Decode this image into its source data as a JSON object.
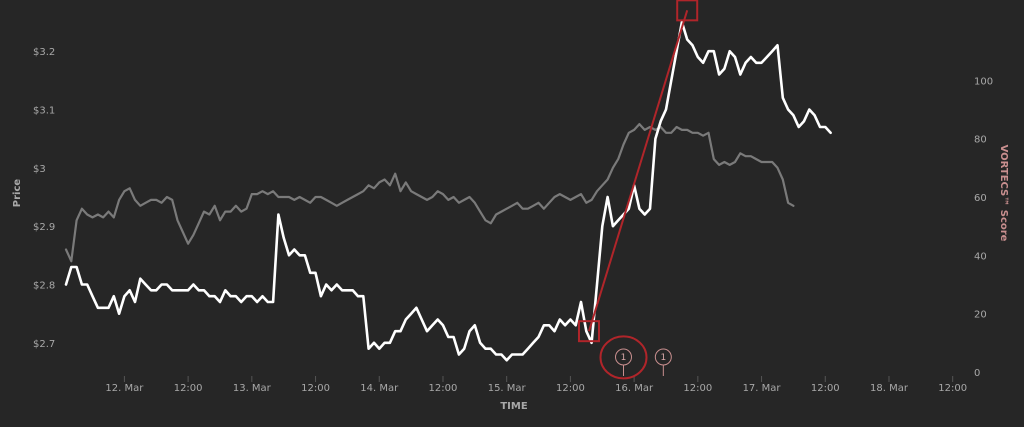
{
  "chart_data": {
    "type": "line",
    "xlabel": "TIME",
    "ylabel_left": "Price",
    "ylabel_right": "VORTECS™ Score",
    "x_ticks": [
      "12. Mar",
      "12:00",
      "13. Mar",
      "12:00",
      "14. Mar",
      "12:00",
      "15. Mar",
      "12:00",
      "16. Mar",
      "12:00",
      "17. Mar",
      "12:00",
      "18. Mar",
      "12:00"
    ],
    "x_tick_hours": [
      24,
      36,
      48,
      60,
      72,
      84,
      96,
      108,
      120,
      132,
      144,
      156,
      168,
      180
    ],
    "x_range_hours": [
      13,
      181
    ],
    "y_left": {
      "ticks": [
        "$2.7",
        "$2.8",
        "$2.9",
        "$3",
        "$3.1",
        "$3.2"
      ],
      "values": [
        2.7,
        2.8,
        2.9,
        3.0,
        3.1,
        3.2
      ],
      "range": [
        2.65,
        3.25
      ]
    },
    "y_right": {
      "ticks": [
        "0",
        "20",
        "40",
        "60",
        "80",
        "100"
      ],
      "values": [
        0,
        20,
        40,
        60,
        80,
        100
      ],
      "range": [
        0,
        120
      ]
    },
    "series": [
      {
        "axis": "left",
        "color": "#ffffff",
        "points": [
          [
            13,
            2.8
          ],
          [
            14,
            2.83
          ],
          [
            15,
            2.83
          ],
          [
            16,
            2.8
          ],
          [
            17,
            2.8
          ],
          [
            18,
            2.78
          ],
          [
            19,
            2.76
          ],
          [
            20,
            2.76
          ],
          [
            21,
            2.76
          ],
          [
            22,
            2.78
          ],
          [
            23,
            2.75
          ],
          [
            24,
            2.78
          ],
          [
            25,
            2.79
          ],
          [
            26,
            2.77
          ],
          [
            27,
            2.81
          ],
          [
            28,
            2.8
          ],
          [
            29,
            2.79
          ],
          [
            30,
            2.79
          ],
          [
            31,
            2.8
          ],
          [
            32,
            2.8
          ],
          [
            33,
            2.79
          ],
          [
            34,
            2.79
          ],
          [
            35,
            2.79
          ],
          [
            36,
            2.79
          ],
          [
            37,
            2.8
          ],
          [
            38,
            2.79
          ],
          [
            39,
            2.79
          ],
          [
            40,
            2.78
          ],
          [
            41,
            2.78
          ],
          [
            42,
            2.77
          ],
          [
            43,
            2.79
          ],
          [
            44,
            2.78
          ],
          [
            45,
            2.78
          ],
          [
            46,
            2.77
          ],
          [
            47,
            2.78
          ],
          [
            48,
            2.78
          ],
          [
            49,
            2.77
          ],
          [
            50,
            2.78
          ],
          [
            51,
            2.77
          ],
          [
            52,
            2.77
          ],
          [
            53,
            2.92
          ],
          [
            54,
            2.88
          ],
          [
            55,
            2.85
          ],
          [
            56,
            2.86
          ],
          [
            57,
            2.85
          ],
          [
            58,
            2.85
          ],
          [
            59,
            2.82
          ],
          [
            60,
            2.82
          ],
          [
            61,
            2.78
          ],
          [
            62,
            2.8
          ],
          [
            63,
            2.79
          ],
          [
            64,
            2.8
          ],
          [
            65,
            2.79
          ],
          [
            66,
            2.79
          ],
          [
            67,
            2.79
          ],
          [
            68,
            2.78
          ],
          [
            69,
            2.78
          ],
          [
            70,
            2.69
          ],
          [
            71,
            2.7
          ],
          [
            72,
            2.69
          ],
          [
            73,
            2.7
          ],
          [
            74,
            2.7
          ],
          [
            75,
            2.72
          ],
          [
            76,
            2.72
          ],
          [
            77,
            2.74
          ],
          [
            78,
            2.75
          ],
          [
            79,
            2.76
          ],
          [
            80,
            2.74
          ],
          [
            81,
            2.72
          ],
          [
            82,
            2.73
          ],
          [
            83,
            2.74
          ],
          [
            84,
            2.73
          ],
          [
            85,
            2.71
          ],
          [
            86,
            2.71
          ],
          [
            87,
            2.68
          ],
          [
            88,
            2.69
          ],
          [
            89,
            2.72
          ],
          [
            90,
            2.73
          ],
          [
            91,
            2.7
          ],
          [
            92,
            2.69
          ],
          [
            93,
            2.69
          ],
          [
            94,
            2.68
          ],
          [
            95,
            2.68
          ],
          [
            96,
            2.67
          ],
          [
            97,
            2.68
          ],
          [
            98,
            2.68
          ],
          [
            99,
            2.68
          ],
          [
            100,
            2.69
          ],
          [
            101,
            2.7
          ],
          [
            102,
            2.71
          ],
          [
            103,
            2.73
          ],
          [
            104,
            2.73
          ],
          [
            105,
            2.72
          ],
          [
            106,
            2.74
          ],
          [
            107,
            2.73
          ],
          [
            108,
            2.74
          ],
          [
            109,
            2.73
          ],
          [
            110,
            2.77
          ],
          [
            111,
            2.72
          ],
          [
            112,
            2.7
          ],
          [
            113,
            2.8
          ],
          [
            114,
            2.9
          ],
          [
            115,
            2.95
          ],
          [
            116,
            2.9
          ],
          [
            117,
            2.91
          ],
          [
            118,
            2.92
          ],
          [
            119,
            2.93
          ],
          [
            120,
            2.97
          ],
          [
            121,
            2.93
          ],
          [
            122,
            2.92
          ],
          [
            123,
            2.93
          ],
          [
            124,
            3.05
          ],
          [
            125,
            3.08
          ],
          [
            126,
            3.1
          ],
          [
            127,
            3.15
          ],
          [
            128,
            3.2
          ],
          [
            129,
            3.25
          ],
          [
            130,
            3.22
          ],
          [
            131,
            3.21
          ],
          [
            132,
            3.19
          ],
          [
            133,
            3.18
          ],
          [
            134,
            3.2
          ],
          [
            135,
            3.2
          ],
          [
            136,
            3.16
          ],
          [
            137,
            3.17
          ],
          [
            138,
            3.2
          ],
          [
            139,
            3.19
          ],
          [
            140,
            3.16
          ],
          [
            141,
            3.18
          ],
          [
            142,
            3.19
          ],
          [
            143,
            3.18
          ],
          [
            144,
            3.18
          ],
          [
            145,
            3.19
          ],
          [
            146,
            3.2
          ],
          [
            147,
            3.21
          ],
          [
            148,
            3.12
          ],
          [
            149,
            3.1
          ],
          [
            150,
            3.09
          ],
          [
            151,
            3.07
          ],
          [
            152,
            3.08
          ],
          [
            153,
            3.1
          ],
          [
            154,
            3.09
          ],
          [
            155,
            3.07
          ],
          [
            156,
            3.07
          ],
          [
            157,
            3.06
          ]
        ]
      },
      {
        "axis": "right",
        "color": "#7a7a7a",
        "points": [
          [
            13,
            42
          ],
          [
            14,
            38
          ],
          [
            15,
            52
          ],
          [
            16,
            56
          ],
          [
            17,
            54
          ],
          [
            18,
            53
          ],
          [
            19,
            54
          ],
          [
            20,
            53
          ],
          [
            21,
            55
          ],
          [
            22,
            53
          ],
          [
            23,
            59
          ],
          [
            24,
            62
          ],
          [
            25,
            63
          ],
          [
            26,
            59
          ],
          [
            27,
            57
          ],
          [
            28,
            58
          ],
          [
            29,
            59
          ],
          [
            30,
            59
          ],
          [
            31,
            58
          ],
          [
            32,
            60
          ],
          [
            33,
            59
          ],
          [
            34,
            52
          ],
          [
            35,
            48
          ],
          [
            36,
            44
          ],
          [
            37,
            47
          ],
          [
            38,
            51
          ],
          [
            39,
            55
          ],
          [
            40,
            54
          ],
          [
            41,
            57
          ],
          [
            42,
            52
          ],
          [
            43,
            55
          ],
          [
            44,
            55
          ],
          [
            45,
            57
          ],
          [
            46,
            55
          ],
          [
            47,
            56
          ],
          [
            48,
            61
          ],
          [
            49,
            61
          ],
          [
            50,
            62
          ],
          [
            51,
            61
          ],
          [
            52,
            62
          ],
          [
            53,
            60
          ],
          [
            54,
            60
          ],
          [
            55,
            60
          ],
          [
            56,
            59
          ],
          [
            57,
            60
          ],
          [
            58,
            59
          ],
          [
            59,
            58
          ],
          [
            60,
            60
          ],
          [
            61,
            60
          ],
          [
            62,
            59
          ],
          [
            63,
            58
          ],
          [
            64,
            57
          ],
          [
            65,
            58
          ],
          [
            66,
            59
          ],
          [
            67,
            60
          ],
          [
            68,
            61
          ],
          [
            69,
            62
          ],
          [
            70,
            64
          ],
          [
            71,
            63
          ],
          [
            72,
            65
          ],
          [
            73,
            66
          ],
          [
            74,
            64
          ],
          [
            75,
            68
          ],
          [
            76,
            62
          ],
          [
            77,
            65
          ],
          [
            78,
            62
          ],
          [
            79,
            61
          ],
          [
            80,
            60
          ],
          [
            81,
            59
          ],
          [
            82,
            60
          ],
          [
            83,
            62
          ],
          [
            84,
            61
          ],
          [
            85,
            59
          ],
          [
            86,
            60
          ],
          [
            87,
            58
          ],
          [
            88,
            59
          ],
          [
            89,
            60
          ],
          [
            90,
            58
          ],
          [
            91,
            55
          ],
          [
            92,
            52
          ],
          [
            93,
            51
          ],
          [
            94,
            54
          ],
          [
            95,
            55
          ],
          [
            96,
            56
          ],
          [
            97,
            57
          ],
          [
            98,
            58
          ],
          [
            99,
            56
          ],
          [
            100,
            56
          ],
          [
            101,
            57
          ],
          [
            102,
            58
          ],
          [
            103,
            56
          ],
          [
            104,
            58
          ],
          [
            105,
            60
          ],
          [
            106,
            61
          ],
          [
            107,
            60
          ],
          [
            108,
            59
          ],
          [
            109,
            60
          ],
          [
            110,
            61
          ],
          [
            111,
            58
          ],
          [
            112,
            59
          ],
          [
            113,
            62
          ],
          [
            114,
            64
          ],
          [
            115,
            66
          ],
          [
            116,
            70
          ],
          [
            117,
            73
          ],
          [
            118,
            78
          ],
          [
            119,
            82
          ],
          [
            120,
            83
          ],
          [
            121,
            85
          ],
          [
            122,
            83
          ],
          [
            123,
            84
          ],
          [
            124,
            83
          ],
          [
            125,
            84
          ],
          [
            126,
            82
          ],
          [
            127,
            82
          ],
          [
            128,
            84
          ],
          [
            129,
            83
          ],
          [
            130,
            83
          ],
          [
            131,
            82
          ],
          [
            132,
            82
          ],
          [
            133,
            81
          ],
          [
            134,
            82
          ],
          [
            135,
            73
          ],
          [
            136,
            71
          ],
          [
            137,
            72
          ],
          [
            138,
            71
          ],
          [
            139,
            72
          ],
          [
            140,
            75
          ],
          [
            141,
            74
          ],
          [
            142,
            74
          ],
          [
            143,
            73
          ],
          [
            144,
            72
          ],
          [
            145,
            72
          ],
          [
            146,
            72
          ],
          [
            147,
            70
          ],
          [
            148,
            66
          ],
          [
            149,
            58
          ],
          [
            150,
            57
          ]
        ]
      }
    ],
    "annotations": {
      "trend_line_color": "#b0252a",
      "trend_line": [
        [
          111.5,
          2.72
        ],
        [
          130,
          3.27
        ]
      ],
      "boxes": [
        [
          111.5,
          2.72
        ],
        [
          130,
          3.27
        ]
      ],
      "circle_center": [
        118,
        2.675
      ],
      "flags": [
        {
          "x": 118,
          "label": "1"
        },
        {
          "x": 125.5,
          "label": "1"
        }
      ]
    }
  }
}
